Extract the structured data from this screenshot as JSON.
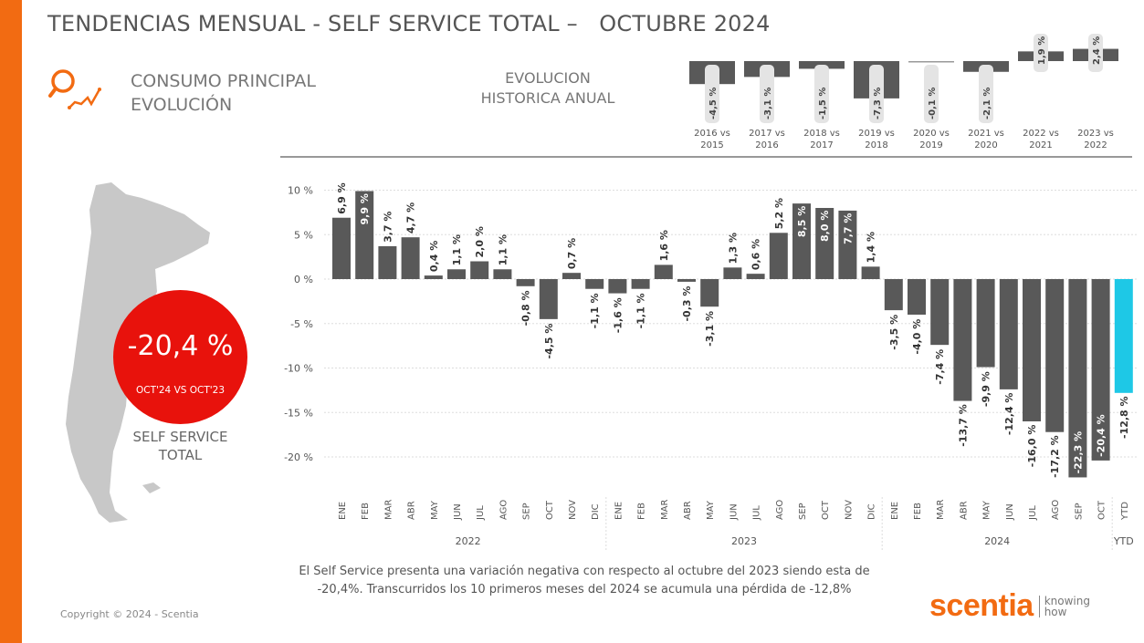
{
  "header": {
    "title": "TENDENCIAS MENSUAL - SELF SERVICE TOTAL –   OCTUBRE 2024"
  },
  "section": {
    "line1": "CONSUMO PRINCIPAL",
    "line2": "EVOLUCIÓN",
    "icon": "magnifier-trend-icon"
  },
  "annual_title": {
    "line1": "EVOLUCION",
    "line2": "HISTORICA ANUAL"
  },
  "kpi": {
    "value": "-20,4 %",
    "caption": "OCT'24 VS OCT'23",
    "segment_line1": "SELF SERVICE",
    "segment_line2": "TOTAL"
  },
  "note": "El Self Service presenta una variación negativa con respecto al octubre del 2023 siendo esta de -20,4%. Transcurridos los 10 primeros meses del 2024 se acumula una pérdida de -12,8%",
  "footer": {
    "copyright": "Copyright © 2024 - Scentia",
    "logo_word": "scentia",
    "logo_tag1": "knowing",
    "logo_tag2": "how"
  },
  "colors": {
    "accent": "#f26b12",
    "bar": "#595959",
    "ytd": "#1ec8e6",
    "kpi": "#e8120c"
  },
  "chart_data": [
    {
      "type": "bar",
      "title": "EVOLUCION HISTORICA ANUAL",
      "categories": [
        [
          "2016 vs",
          "2015"
        ],
        [
          "2017 vs",
          "2016"
        ],
        [
          "2018 vs",
          "2017"
        ],
        [
          "2019 vs",
          "2018"
        ],
        [
          "2020 vs",
          "2019"
        ],
        [
          "2021 vs",
          "2020"
        ],
        [
          "2022 vs",
          "2021"
        ],
        [
          "2023 vs",
          "2022"
        ]
      ],
      "values": [
        -4.5,
        -3.1,
        -1.5,
        -7.3,
        -0.1,
        -2.1,
        1.9,
        2.4
      ],
      "labels": [
        "-4,5 %",
        "-3,1 %",
        "-1,5 %",
        "-7,3 %",
        "-0,1 %",
        "-2,1 %",
        "1,9 %",
        "2,4 %"
      ]
    },
    {
      "type": "bar",
      "ylim": [
        -20,
        10
      ],
      "yticks": [
        10,
        5,
        0,
        -5,
        -10,
        -15,
        -20
      ],
      "ytick_labels": [
        "10 %",
        "5 %",
        "0 %",
        "-5 %",
        "-10 %",
        "-15 %",
        "-20 %"
      ],
      "grid": true,
      "groups": [
        {
          "label": "2022",
          "months": [
            "ENE",
            "FEB",
            "MAR",
            "ABR",
            "MAY",
            "JUN",
            "JUL",
            "AGO",
            "SEP",
            "OCT",
            "NOV",
            "DIC"
          ],
          "values": [
            6.9,
            9.9,
            3.7,
            4.7,
            0.4,
            1.1,
            2.0,
            1.1,
            -0.8,
            -4.5,
            0.7,
            -1.1
          ],
          "labels": [
            "6,9 %",
            "9,9 %",
            "3,7 %",
            "4,7 %",
            "0,4 %",
            "1,1 %",
            "2,0 %",
            "1,1 %",
            "-0,8 %",
            "-4,5 %",
            "0,7 %",
            "-1,1 %"
          ]
        },
        {
          "label": "2023",
          "months": [
            "ENE",
            "FEB",
            "MAR",
            "ABR",
            "MAY",
            "JUN",
            "JUL",
            "AGO",
            "SEP",
            "OCT",
            "NOV",
            "DIC"
          ],
          "values": [
            -1.6,
            -1.1,
            1.6,
            -0.3,
            -3.1,
            1.3,
            0.6,
            5.2,
            8.5,
            8.0,
            7.7,
            1.4
          ],
          "labels": [
            "-1,6 %",
            "-1,1 %",
            "1,6 %",
            "-0,3 %",
            "-3,1 %",
            "1,3 %",
            "0,6 %",
            "5,2 %",
            "8,5 %",
            "8,0 %",
            "7,7 %",
            "1,4 %"
          ]
        },
        {
          "label": "2024",
          "months": [
            "ENE",
            "FEB",
            "MAR",
            "ABR",
            "MAY",
            "JUN",
            "JUL",
            "AGO",
            "SEP",
            "OCT"
          ],
          "values": [
            -3.5,
            -4.0,
            -7.4,
            -13.7,
            -9.9,
            -12.4,
            -16.0,
            -17.2,
            -22.3,
            -20.4
          ],
          "labels": [
            "-3,5 %",
            "-4,0 %",
            "-7,4 %",
            "-13,7 %",
            "-9,9 %",
            "-12,4 %",
            "-16,0 %",
            "-17,2 %",
            "-22,3 %",
            "-20,4 %"
          ]
        },
        {
          "label": "YTD",
          "months": [
            "YTD"
          ],
          "values": [
            -12.8
          ],
          "labels": [
            "-12,8 %"
          ]
        }
      ]
    }
  ]
}
